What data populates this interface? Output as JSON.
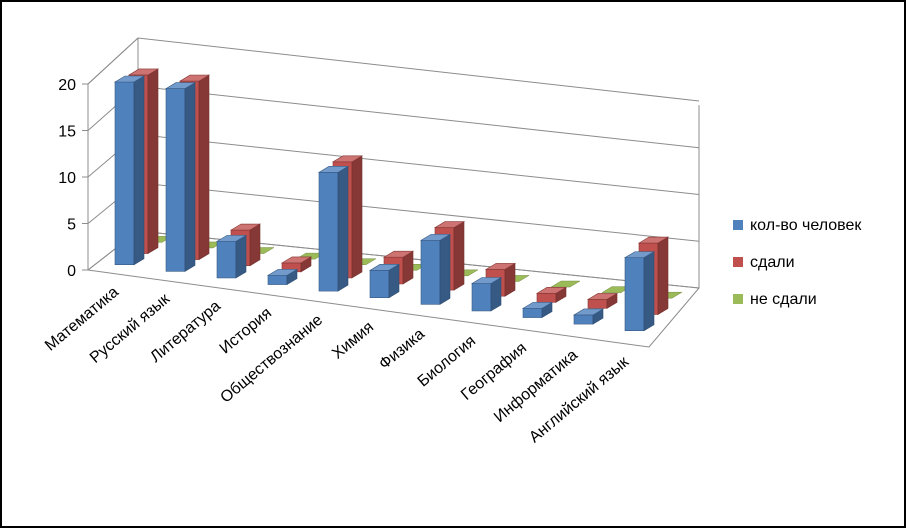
{
  "chart_data": {
    "type": "bar",
    "categories": [
      "Математика",
      "Русский язык",
      "Литература",
      "История",
      "Обществознание",
      "Химия",
      "Физика",
      "Биология",
      "География",
      "Информатика",
      "Английский язык"
    ],
    "series": [
      {
        "name": "кол-во человек",
        "color": "#4F81BD",
        "values": [
          20,
          20,
          4,
          1,
          13,
          3,
          7,
          3,
          1,
          1,
          8
        ]
      },
      {
        "name": "сдали",
        "color": "#C0504D",
        "values": [
          20,
          20,
          4,
          1,
          13,
          3,
          7,
          3,
          1,
          1,
          8
        ]
      },
      {
        "name": "не сдали",
        "color": "#9BBB59",
        "values": [
          0,
          0,
          0,
          0,
          0,
          0,
          0,
          0,
          0,
          0,
          0
        ]
      }
    ],
    "yticks": [
      0,
      5,
      10,
      15,
      20
    ],
    "ylim": [
      0,
      20
    ],
    "grid": true,
    "legend": "right",
    "title": "",
    "xlabel": "",
    "ylabel": ""
  }
}
